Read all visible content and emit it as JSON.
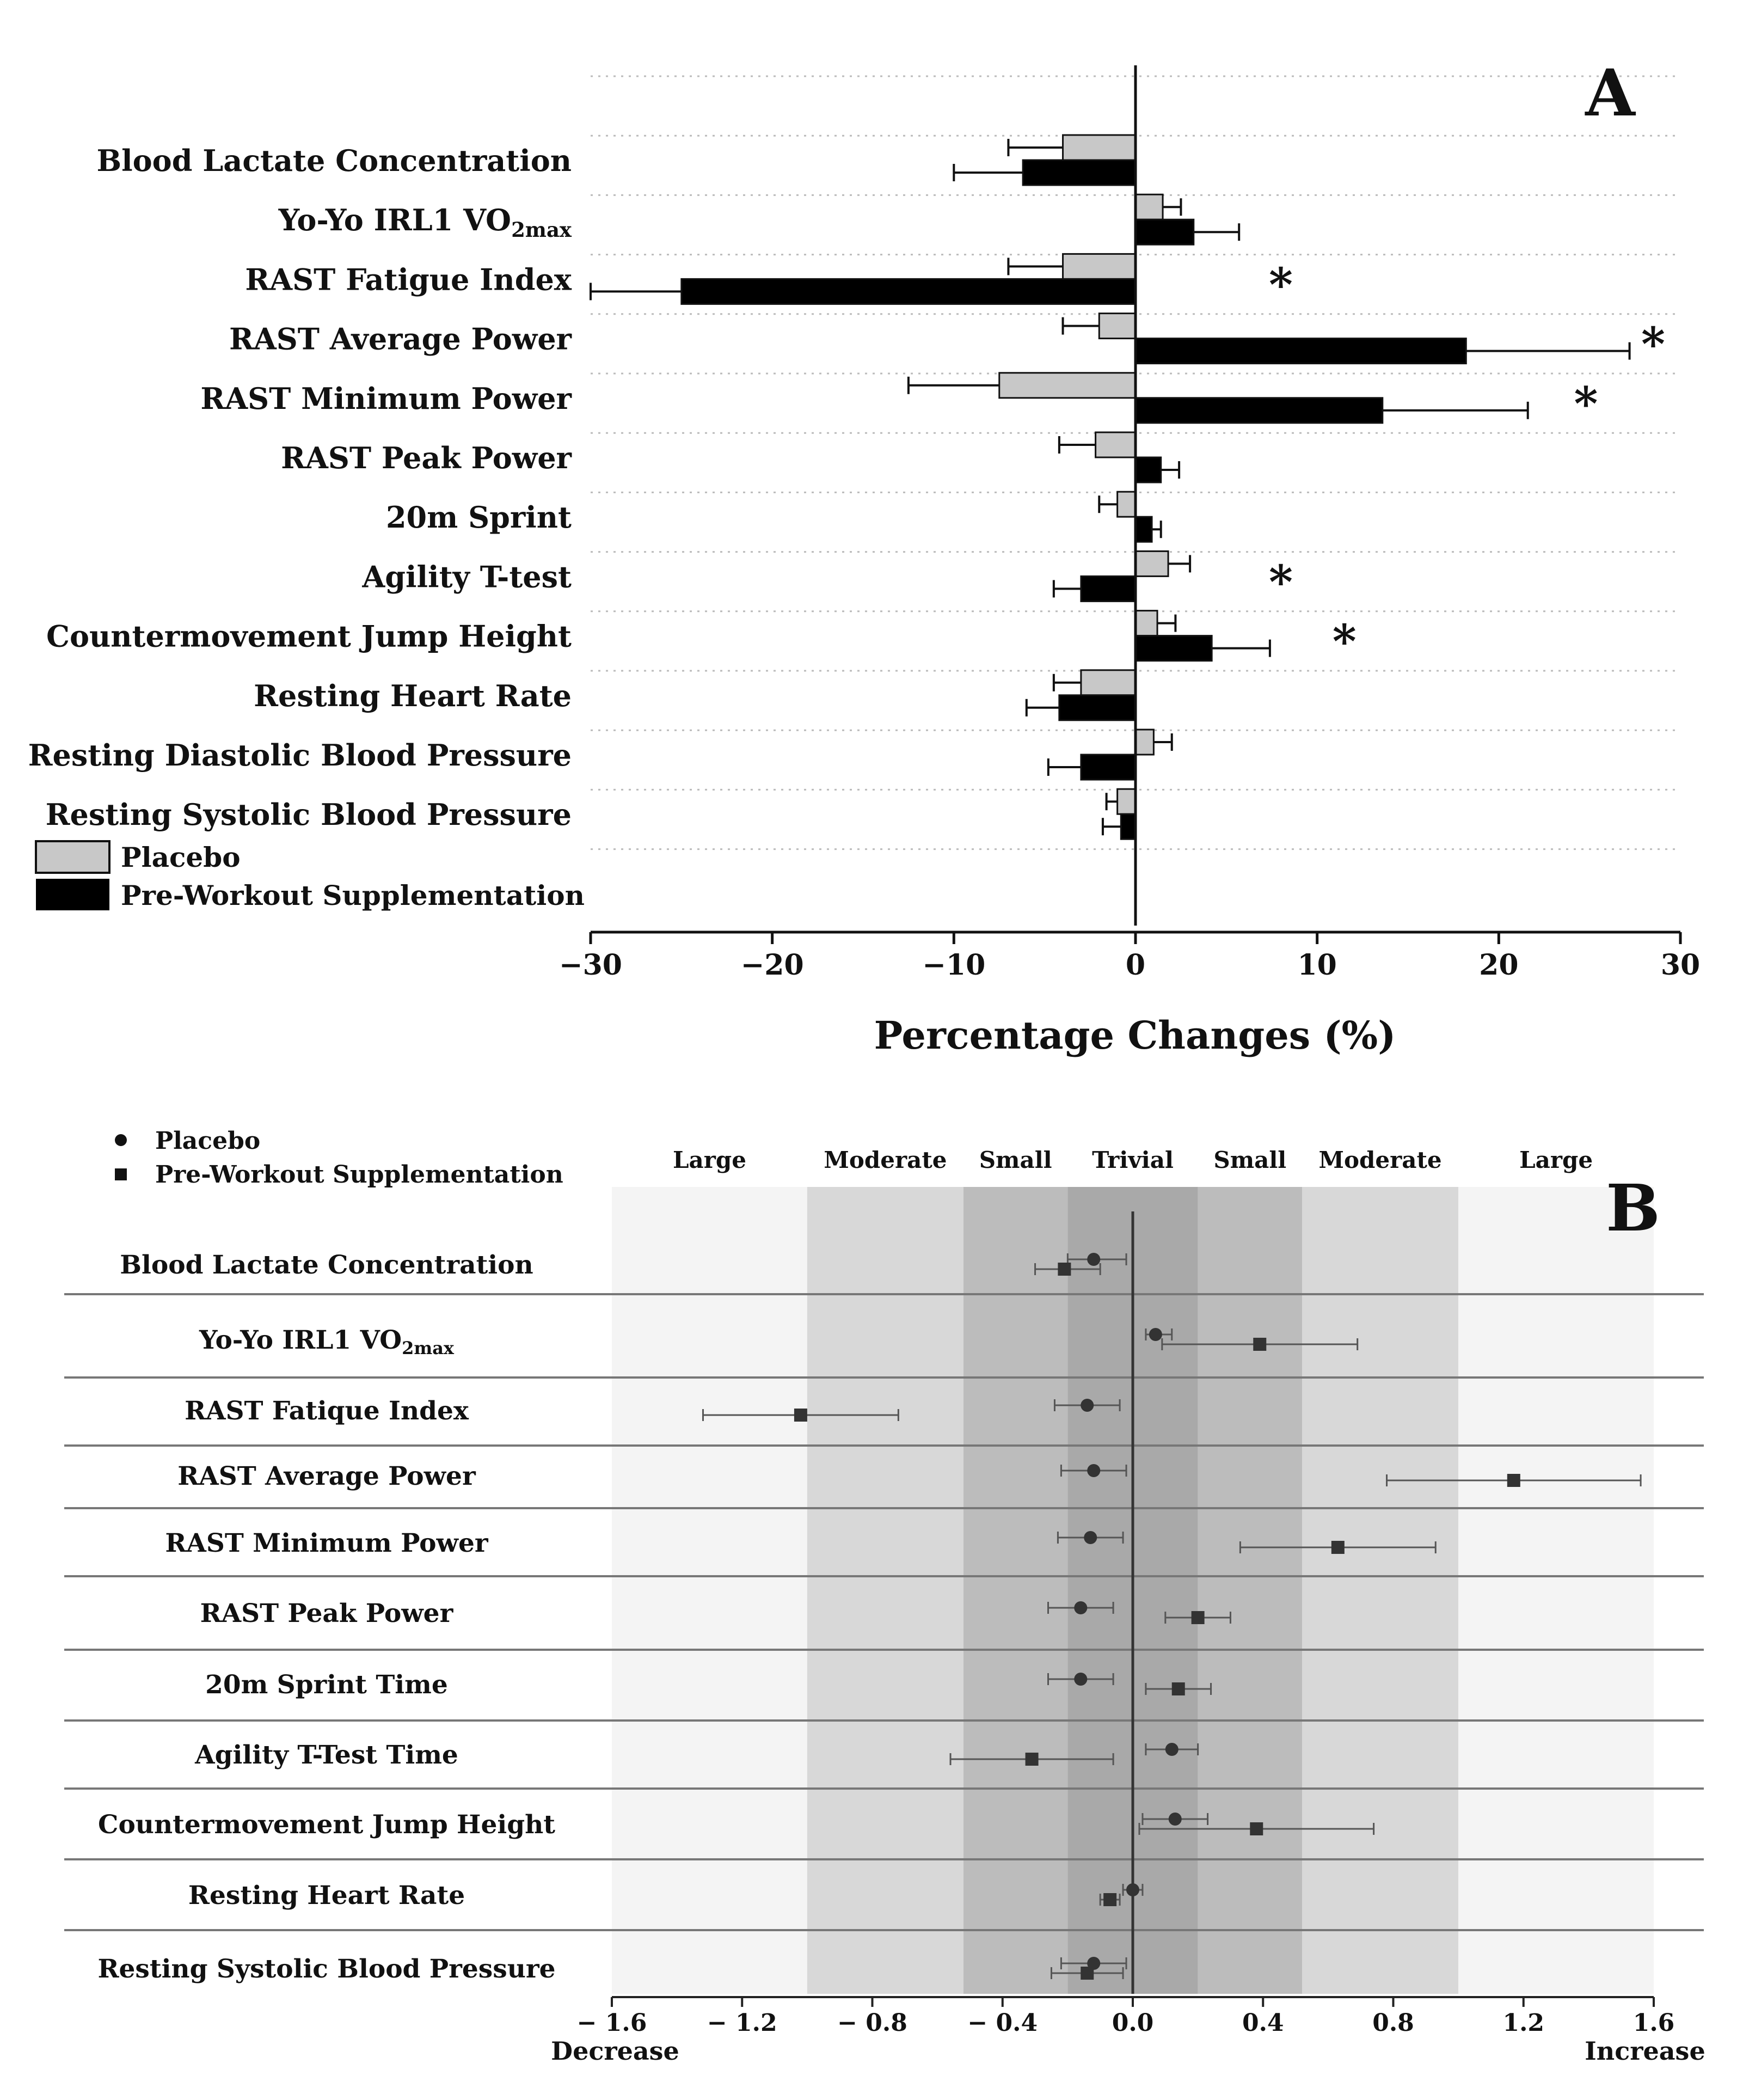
{
  "chart_data": [
    {
      "panel": "A",
      "type": "bar",
      "orientation": "horizontal",
      "title": "",
      "panel_label": "A",
      "xlabel": "Percentage Changes (%)",
      "ylabel": "",
      "xlim": [
        -30,
        30
      ],
      "xticks": [
        -30,
        -20,
        -10,
        0,
        10,
        20,
        30
      ],
      "xtick_labels": [
        "−30",
        "−20",
        "−10",
        "0",
        "10",
        "20",
        "30"
      ],
      "grid": "dotted horizontal",
      "legend_position": "bottom-left",
      "categories": [
        "Blood Lactate Concentration",
        "Yo-Yo IRL1 VO2max",
        "RAST Fatigue Index",
        "RAST Average Power",
        "RAST Minimum Power",
        "RAST Peak Power",
        "20m Sprint",
        "Agility T-test",
        "Countermovement Jump Height",
        "Resting Heart Rate",
        "Resting Diastolic Blood Pressure",
        "Resting Systolic Blood Pressure"
      ],
      "series": [
        {
          "name": "Placebo",
          "color": "#c8c8c8",
          "values": [
            -4.0,
            1.5,
            -4.0,
            -2.0,
            -7.5,
            -2.2,
            -1.0,
            1.8,
            1.2,
            -3.0,
            1.0,
            -1.0
          ],
          "errors": [
            3.0,
            1.0,
            3.0,
            2.0,
            5.0,
            2.0,
            1.0,
            1.2,
            1.0,
            1.5,
            1.0,
            0.6
          ]
        },
        {
          "name": "Pre-Workout Supplementation",
          "color": "#000000",
          "values": [
            -6.2,
            3.2,
            -25.0,
            18.2,
            13.6,
            1.4,
            0.9,
            -3.0,
            4.2,
            -4.2,
            -3.0,
            -0.8
          ],
          "errors": [
            3.8,
            2.5,
            5.0,
            9.0,
            8.0,
            1.0,
            0.5,
            1.5,
            3.2,
            1.8,
            1.8,
            1.0
          ]
        }
      ],
      "annotations": [
        {
          "category": "RAST Fatigue Index",
          "text": "*",
          "at": 8
        },
        {
          "category": "RAST Average Power",
          "text": "*",
          "at": 28.5
        },
        {
          "category": "RAST Minimum Power",
          "text": "*",
          "at": 24.8
        },
        {
          "category": "Agility T-test",
          "text": "*",
          "at": 8
        },
        {
          "category": "Countermovement Jump Height",
          "text": "*",
          "at": 11.5
        }
      ]
    },
    {
      "panel": "B",
      "type": "scatter",
      "orientation": "horizontal",
      "title": "",
      "panel_label": "B",
      "xlabel": "",
      "xlim": [
        -1.6,
        1.6
      ],
      "xticks": [
        -1.6,
        -1.2,
        -0.8,
        -0.4,
        0.0,
        0.4,
        0.8,
        1.2,
        1.6
      ],
      "xtick_labels": [
        "− 1.6",
        "− 1.2",
        "− 0.8",
        "− 0.4",
        "0.0",
        "0.4",
        "0.8",
        "1.2",
        "1.6"
      ],
      "axis_end_left": "Decrease",
      "axis_end_right": "Increase",
      "legend_position": "top-left",
      "bands": [
        {
          "label": "Large",
          "from": -1.6,
          "to": -1.0,
          "color": "#f4f4f4"
        },
        {
          "label": "Moderate",
          "from": -1.0,
          "to": -0.52,
          "color": "#d8d8d8"
        },
        {
          "label": "Small",
          "from": -0.52,
          "to": -0.2,
          "color": "#bcbcbc"
        },
        {
          "label": "Trivial",
          "from": -0.2,
          "to": 0.2,
          "color": "#a9a9a9"
        },
        {
          "label": "Small",
          "from": 0.2,
          "to": 0.52,
          "color": "#bcbcbc"
        },
        {
          "label": "Moderate",
          "from": 0.52,
          "to": 1.0,
          "color": "#d8d8d8"
        },
        {
          "label": "Large",
          "from": 1.0,
          "to": 1.6,
          "color": "#f4f4f4"
        }
      ],
      "categories": [
        "Blood Lactate Concentration",
        "Yo-Yo IRL1 VO2max",
        "RAST Fatique Index",
        "RAST Average Power",
        "RAST Minimum Power",
        "RAST Peak Power",
        "20m Sprint Time",
        "Agility T-Test Time",
        "Countermovement Jump Height",
        "Resting Heart Rate",
        "Resting Systolic Blood Pressure"
      ],
      "series": [
        {
          "name": "Placebo",
          "marker": "circle",
          "values": [
            -0.12,
            0.07,
            -0.14,
            -0.12,
            -0.13,
            -0.16,
            -0.16,
            0.12,
            0.13,
            0.0,
            -0.12
          ],
          "ci_low": [
            -0.2,
            0.04,
            -0.24,
            -0.22,
            -0.23,
            -0.26,
            -0.26,
            0.04,
            0.03,
            -0.03,
            -0.22
          ],
          "ci_high": [
            -0.02,
            0.12,
            -0.04,
            -0.02,
            -0.03,
            -0.06,
            -0.06,
            0.2,
            0.23,
            0.03,
            -0.02
          ]
        },
        {
          "name": "Pre-Workout Supplementation",
          "marker": "square",
          "values": [
            -0.21,
            0.39,
            -1.02,
            1.17,
            0.63,
            0.2,
            0.14,
            -0.31,
            0.38,
            -0.07,
            -0.14
          ],
          "ci_low": [
            -0.3,
            0.09,
            -1.32,
            0.78,
            0.33,
            0.1,
            0.04,
            -0.56,
            0.02,
            -0.1,
            -0.25
          ],
          "ci_high": [
            -0.1,
            0.69,
            -0.72,
            1.56,
            0.93,
            0.3,
            0.24,
            -0.06,
            0.74,
            -0.04,
            -0.03
          ]
        }
      ]
    }
  ]
}
